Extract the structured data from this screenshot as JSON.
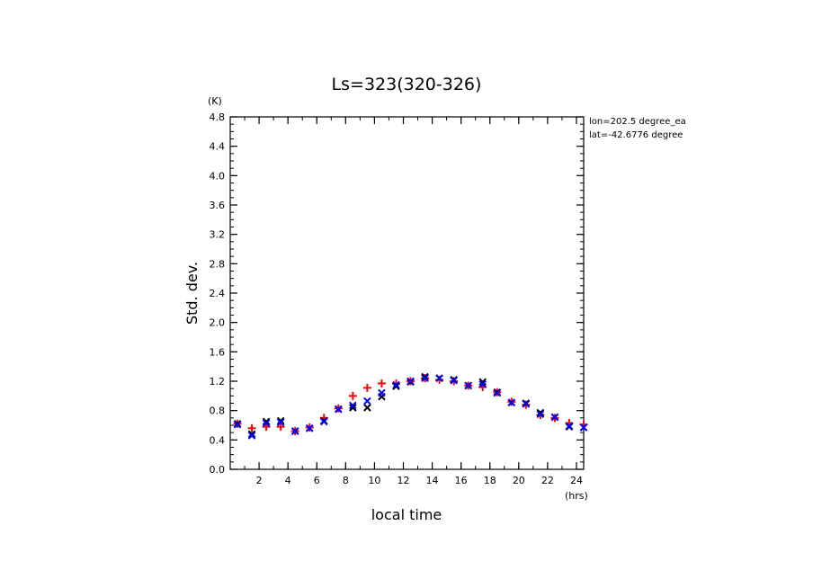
{
  "chart_data": {
    "type": "scatter",
    "title": "Ls=323(320-326)",
    "xlabel": "local time",
    "ylabel": "Std. dev.",
    "x_unit": "(hrs)",
    "y_unit": "(K)",
    "xlim": [
      0,
      24.5
    ],
    "ylim": [
      0,
      4.8
    ],
    "x_ticks": [
      2,
      4,
      6,
      8,
      10,
      12,
      14,
      16,
      18,
      20,
      22,
      24
    ],
    "y_ticks": [
      "0.0",
      "0.4",
      "0.8",
      "1.2",
      "1.6",
      "2.0",
      "2.4",
      "2.8",
      "3.2",
      "3.6",
      "4.0",
      "4.4",
      "4.8"
    ],
    "annotations": [
      "lon=202.5 degree_ea",
      "lat=-42.6776 degree"
    ],
    "grid": false,
    "x": [
      0.5,
      1.5,
      2.5,
      3.5,
      4.5,
      5.5,
      6.5,
      7.5,
      8.5,
      9.5,
      10.5,
      11.5,
      12.5,
      13.5,
      14.5,
      15.5,
      16.5,
      17.5,
      18.5,
      19.5,
      20.5,
      21.5,
      22.5,
      23.5,
      24.5
    ],
    "series": [
      {
        "marker": "plus",
        "color": "#ff0000",
        "values": [
          0.62,
          0.56,
          0.58,
          0.58,
          0.52,
          0.57,
          0.7,
          0.83,
          1.0,
          1.11,
          1.17,
          1.17,
          1.2,
          1.24,
          1.22,
          1.2,
          1.14,
          1.12,
          1.05,
          0.92,
          0.88,
          0.74,
          0.7,
          0.63,
          0.61
        ]
      },
      {
        "marker": "x",
        "color": "#000000",
        "values": [
          0.62,
          0.48,
          0.65,
          0.66,
          0.52,
          0.56,
          0.66,
          0.82,
          0.84,
          0.84,
          0.99,
          1.13,
          1.19,
          1.26,
          1.24,
          1.22,
          1.14,
          1.19,
          1.05,
          0.91,
          0.9,
          0.77,
          0.71,
          0.58,
          0.57
        ]
      },
      {
        "marker": "x",
        "color": "#0000ff",
        "values": [
          0.61,
          0.46,
          0.63,
          0.64,
          0.52,
          0.56,
          0.65,
          0.82,
          0.87,
          0.93,
          1.04,
          1.15,
          1.2,
          1.24,
          1.24,
          1.21,
          1.14,
          1.16,
          1.04,
          0.91,
          0.89,
          0.75,
          0.71,
          0.59,
          0.57
        ]
      }
    ]
  }
}
